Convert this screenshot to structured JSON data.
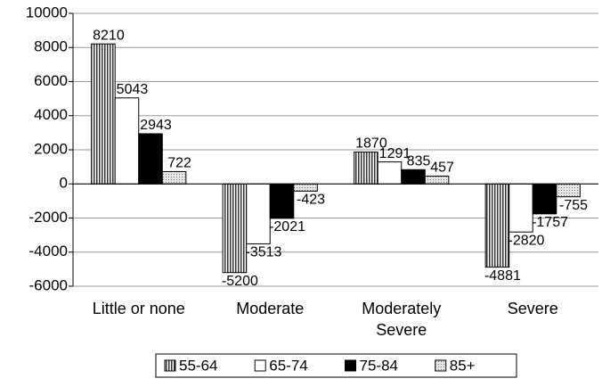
{
  "chart_data": {
    "type": "bar",
    "categories": [
      "Little or none",
      "Moderate",
      "Moderately Severe",
      "Severe"
    ],
    "series": [
      {
        "name": "55-64",
        "color": "#ffffff",
        "pattern": "vertical-stripes",
        "values": [
          8210,
          -5200,
          1870,
          -4881
        ]
      },
      {
        "name": "65-74",
        "color": "#ffffff",
        "pattern": "solid",
        "values": [
          5043,
          -3513,
          1291,
          -2820
        ]
      },
      {
        "name": "75-84",
        "color": "#000000",
        "pattern": "solid",
        "values": [
          2943,
          -2021,
          835,
          -1757
        ]
      },
      {
        "name": "85+",
        "color": "#e6e6e6",
        "pattern": "dots",
        "values": [
          722,
          -423,
          457,
          -755
        ]
      }
    ],
    "ylim": [
      -6000,
      10000
    ],
    "yticks": [
      -6000,
      -4000,
      -2000,
      0,
      2000,
      4000,
      6000,
      8000,
      10000
    ],
    "grid": true,
    "legend": "bottom"
  }
}
